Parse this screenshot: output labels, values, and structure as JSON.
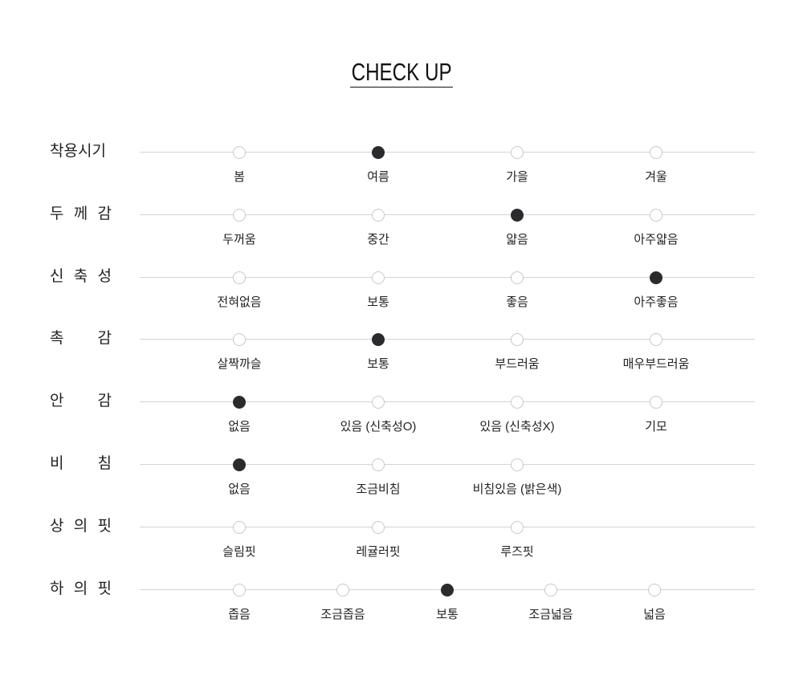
{
  "title": "CHECK UP",
  "colors": {
    "selected": "#2b2b2e",
    "unselected_border": "#c8c8c8",
    "track": "#d4d4d4"
  },
  "rows": [
    {
      "label": "착용시기",
      "options": [
        "봄",
        "여름",
        "가을",
        "겨울"
      ],
      "selected": 1
    },
    {
      "label": "두 께 감",
      "options": [
        "두꺼움",
        "중간",
        "얇음",
        "아주얇음"
      ],
      "selected": 2
    },
    {
      "label": "신 축 성",
      "options": [
        "전혀없음",
        "보통",
        "좋음",
        "아주좋음"
      ],
      "selected": 3
    },
    {
      "label": "촉 감",
      "options": [
        "살짝까슬",
        "보통",
        "부드러움",
        "매우부드러움"
      ],
      "selected": 1
    },
    {
      "label": "안 감",
      "options": [
        "없음",
        "있음 (신축성O)",
        "있음 (신축성X)",
        "기모"
      ],
      "selected": 0
    },
    {
      "label": "비 침",
      "options": [
        "없음",
        "조금비침",
        "비침있음 (밝은색)"
      ],
      "selected": 0
    },
    {
      "label": "상 의 핏",
      "options": [
        "슬림핏",
        "레귤러핏",
        "루즈핏"
      ],
      "selected": null
    },
    {
      "label": "하 의 핏",
      "options": [
        "좁음",
        "조금좁음",
        "보통",
        "조금넓음",
        "넓음"
      ],
      "selected": 2
    }
  ]
}
